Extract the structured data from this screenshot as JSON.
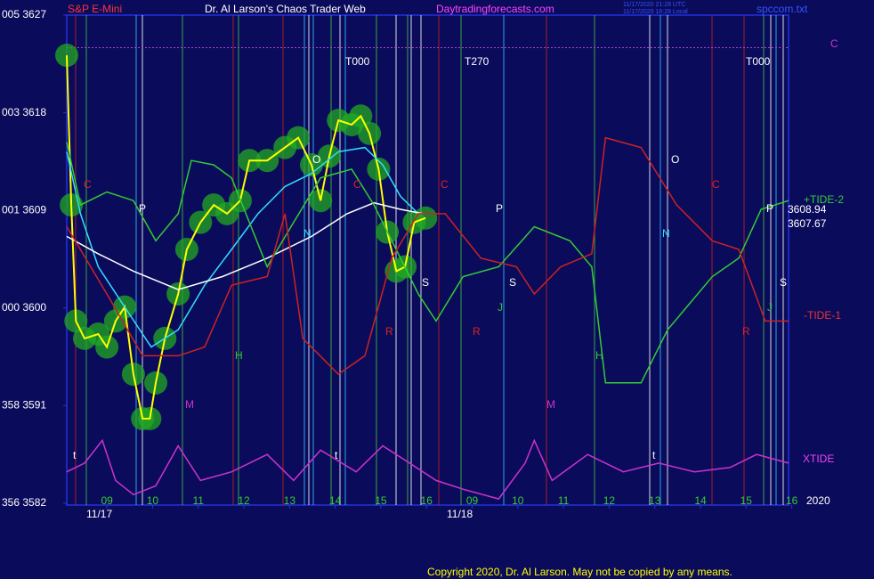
{
  "chart_data": {
    "type": "line",
    "title": "Dr. Al Larson's Chaos Trader Web",
    "instrument": "S&P E-Mini",
    "site": "Daytradingforecasts.com",
    "file": "spccom.txt",
    "timestamps": [
      "11/17/2020 21:28 UTC",
      "11/17/2020 16:28 Local"
    ],
    "copyright": "Copyright 2020, Dr. Al Larson. May not be copied by any means.",
    "year": "2020",
    "dates": [
      "11/17",
      "11/18"
    ],
    "xlim": [
      -0.88,
      14.93
    ],
    "ylim": [
      3582,
      3627
    ],
    "yticks": [
      {
        "value": 3627,
        "label": "005 3627"
      },
      {
        "value": 3618,
        "label": "003 3618"
      },
      {
        "value": 3609,
        "label": "001 3609"
      },
      {
        "value": 3600,
        "label": "000 3600"
      },
      {
        "value": 3591,
        "label": "358 3591"
      },
      {
        "value": 3582,
        "label": "356 3582"
      }
    ],
    "xticks": [
      {
        "value": 0,
        "label": "09"
      },
      {
        "value": 1,
        "label": "10"
      },
      {
        "value": 2,
        "label": "11"
      },
      {
        "value": 3,
        "label": "12"
      },
      {
        "value": 4,
        "label": "13"
      },
      {
        "value": 5,
        "label": "14"
      },
      {
        "value": 6,
        "label": "15"
      },
      {
        "value": 7,
        "label": "16"
      },
      {
        "value": 8,
        "label": "09"
      },
      {
        "value": 9,
        "label": "10"
      },
      {
        "value": 10,
        "label": "11"
      },
      {
        "value": 11,
        "label": "12"
      },
      {
        "value": 12,
        "label": "13"
      },
      {
        "value": 13,
        "label": "14"
      },
      {
        "value": 14,
        "label": "15"
      },
      {
        "value": 15,
        "label": "16"
      }
    ],
    "hline": 3624,
    "hline_color": "#b040d0",
    "series": [
      {
        "color": "#ffff00",
        "glow": true,
        "x": [
          -0.88,
          -0.78,
          -0.68,
          -0.49,
          -0.19,
          0,
          0.19,
          0.39,
          0.58,
          0.78,
          0.94,
          1.07,
          1.27,
          1.56,
          1.75,
          2.05,
          2.34,
          2.63,
          2.92,
          3.12,
          3.51,
          3.9,
          4.19,
          4.48,
          4.68,
          4.87,
          5.07,
          5.36,
          5.56,
          5.75,
          5.95,
          6.14,
          6.34,
          6.53,
          6.73,
          6.98
        ],
        "values": [
          3623.3,
          3609.5,
          3598.8,
          3597.2,
          3597.6,
          3596.4,
          3598.8,
          3600.1,
          3593.9,
          3589.8,
          3589.8,
          3593.1,
          3597.2,
          3601.3,
          3605.4,
          3607.9,
          3609.5,
          3608.7,
          3609.9,
          3613.6,
          3613.6,
          3614.8,
          3615.7,
          3613.2,
          3609.9,
          3614.0,
          3617.3,
          3616.9,
          3617.7,
          3616.1,
          3612.8,
          3607.0,
          3603.4,
          3603.8,
          3607.9,
          3608.3
        ]
      },
      {
        "color": "#33ddff",
        "x": [
          -0.88,
          -0.58,
          -0.19,
          0.39,
          0.97,
          1.56,
          2.14,
          2.73,
          3.31,
          3.9,
          4.48,
          5.07,
          5.65,
          6.04,
          6.43,
          6.82
        ],
        "values": [
          3614.4,
          3608.7,
          3603.8,
          3600.1,
          3596.4,
          3598.0,
          3602.1,
          3605.4,
          3608.7,
          3611.2,
          3612.4,
          3614.4,
          3614.8,
          3613.2,
          3610.3,
          3608.7
        ]
      },
      {
        "color": "#ffffff",
        "x": [
          -0.88,
          -0.19,
          0.58,
          1.56,
          2.53,
          3.51,
          4.48,
          5.26,
          5.85,
          6.43,
          6.92
        ],
        "values": [
          3606.6,
          3605.0,
          3603.4,
          3601.7,
          3602.9,
          3604.6,
          3606.6,
          3608.7,
          3609.7,
          3609.1,
          3608.7
        ]
      },
      {
        "color": "#33cc33",
        "x": [
          -0.88,
          -0.58,
          0,
          0.58,
          1.07,
          1.56,
          1.85,
          2.34,
          2.73,
          3.51,
          4.09,
          4.68,
          5.36,
          5.85,
          6.82,
          7.21,
          7.8,
          8.58,
          9.36,
          10.14,
          10.62,
          10.92,
          11.7,
          12.28,
          13.26,
          13.84,
          14.33,
          14.93
        ],
        "values": [
          3615.3,
          3609.5,
          3610.7,
          3609.9,
          3606.2,
          3608.7,
          3613.6,
          3613.2,
          3612.0,
          3603.8,
          3607.9,
          3612.0,
          3612.8,
          3609.5,
          3601.3,
          3598.8,
          3602.9,
          3603.8,
          3607.5,
          3606.2,
          3603.8,
          3593.1,
          3593.1,
          3598.0,
          3602.9,
          3604.6,
          3609.1,
          3609.9
        ]
      },
      {
        "color": "#cc2222",
        "x": [
          -0.88,
          0,
          0.78,
          1.56,
          2.14,
          2.73,
          3.51,
          3.9,
          4.29,
          5.07,
          5.65,
          6.24,
          6.82,
          7.41,
          8.19,
          8.97,
          9.36,
          9.94,
          10.62,
          10.92,
          11.7,
          12.48,
          13.26,
          13.84,
          14.42,
          14.93
        ],
        "values": [
          3607.5,
          3601.3,
          3595.6,
          3595.6,
          3596.4,
          3602.1,
          3602.9,
          3608.7,
          3597.2,
          3593.9,
          3595.6,
          3604.6,
          3608.7,
          3608.7,
          3604.6,
          3603.8,
          3601.3,
          3603.8,
          3605.0,
          3615.7,
          3614.8,
          3609.5,
          3606.2,
          3605.4,
          3598.8,
          3598.8
        ]
      },
      {
        "color": "#cc33cc",
        "x": [
          -0.88,
          -0.49,
          -0.1,
          0.19,
          0.58,
          1.07,
          1.56,
          2.05,
          2.73,
          3.51,
          4.09,
          4.68,
          5.46,
          6.04,
          6.63,
          7.21,
          7.8,
          8.58,
          9.16,
          9.36,
          9.75,
          10.53,
          11.31,
          12.09,
          12.87,
          13.65,
          14.23,
          14.93
        ],
        "values": [
          3584.9,
          3585.7,
          3587.8,
          3584.1,
          3582.8,
          3583.6,
          3587.3,
          3584.1,
          3584.9,
          3586.5,
          3584.1,
          3586.9,
          3584.9,
          3587.3,
          3585.7,
          3584.1,
          3583.3,
          3582.4,
          3585.7,
          3587.8,
          3584.1,
          3586.5,
          3584.9,
          3585.7,
          3584.9,
          3585.3,
          3586.5,
          3585.7
        ]
      }
    ],
    "right_labels": [
      {
        "text": "C",
        "color": "#cc33cc"
      },
      {
        "text": "+TIDE-2",
        "color": "#33cc33"
      },
      {
        "text": "3608.94",
        "color": "#ffffff"
      },
      {
        "text": "3607.67",
        "color": "#ffffff"
      },
      {
        "text": "-TIDE-1",
        "color": "#ee3333"
      },
      {
        "text": "XTIDE",
        "color": "#ee44ee"
      }
    ],
    "annotations": [
      {
        "text": "T000",
        "color": "#ffffff"
      },
      {
        "text": "T270",
        "color": "#ffffff"
      },
      {
        "text": "T000",
        "color": "#ffffff"
      },
      {
        "text": "C",
        "color": "#dd2222"
      },
      {
        "text": "C",
        "color": "#dd2222"
      },
      {
        "text": "C",
        "color": "#dd2222"
      },
      {
        "text": "C",
        "color": "#dd2222"
      },
      {
        "text": "P",
        "color": "#ffffff"
      },
      {
        "text": "P",
        "color": "#ffffff"
      },
      {
        "text": "P",
        "color": "#ffffff"
      },
      {
        "text": "O",
        "color": "#ffffff"
      },
      {
        "text": "O",
        "color": "#ffffff"
      },
      {
        "text": "N",
        "color": "#33ddff"
      },
      {
        "text": "N",
        "color": "#33ddff"
      },
      {
        "text": "S",
        "color": "#ffffff"
      },
      {
        "text": "S",
        "color": "#ffffff"
      },
      {
        "text": "S",
        "color": "#ffffff"
      },
      {
        "text": "J",
        "color": "#33cc33"
      },
      {
        "text": "J",
        "color": "#33cc33"
      },
      {
        "text": "R",
        "color": "#dd2222"
      },
      {
        "text": "R",
        "color": "#dd2222"
      },
      {
        "text": "R",
        "color": "#dd2222"
      },
      {
        "text": "H",
        "color": "#33cc33"
      },
      {
        "text": "H",
        "color": "#33cc33"
      },
      {
        "text": "M",
        "color": "#cc33cc"
      },
      {
        "text": "M",
        "color": "#cc33cc"
      },
      {
        "text": "t",
        "color": "#ffffff"
      },
      {
        "text": "t",
        "color": "#ffffff"
      },
      {
        "text": "t",
        "color": "#ffffff"
      }
    ]
  }
}
